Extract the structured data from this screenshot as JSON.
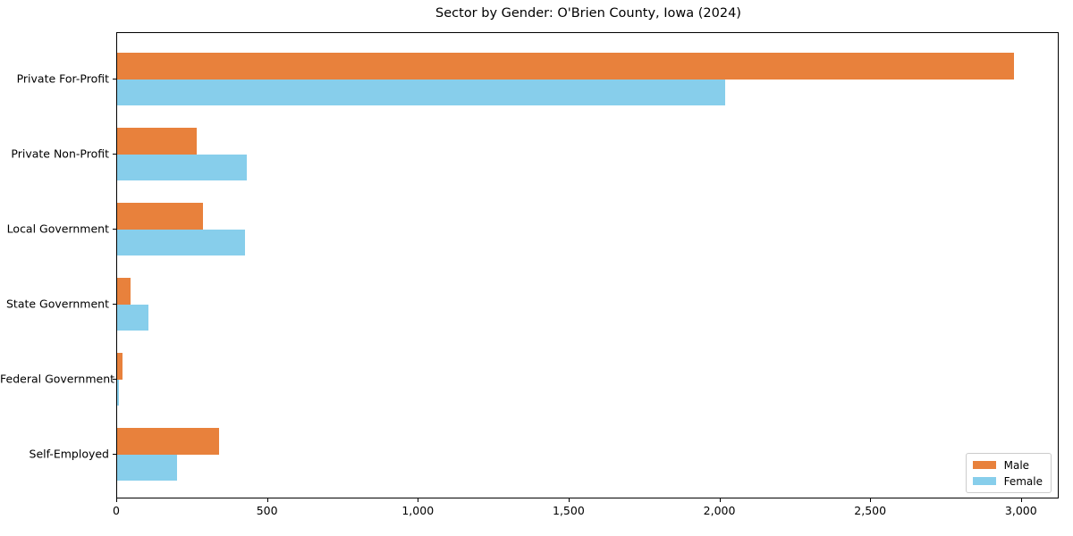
{
  "chart_data": {
    "type": "bar",
    "orientation": "horizontal",
    "title": "Sector by Gender: O'Brien County, Iowa (2024)",
    "categories": [
      "Private For-Profit",
      "Private Non-Profit",
      "Local Government",
      "State Government",
      "Federal Government",
      "Self-Employed"
    ],
    "series": [
      {
        "name": "Male",
        "color": "#e8813c",
        "values": [
          2980,
          265,
          285,
          45,
          18,
          340
        ]
      },
      {
        "name": "Female",
        "color": "#87ceeb",
        "values": [
          2020,
          430,
          425,
          105,
          6,
          200
        ]
      }
    ],
    "xlabel": "",
    "ylabel": "",
    "xlim": [
      0,
      3125
    ],
    "xticks": [
      0,
      500,
      1000,
      1500,
      2000,
      2500,
      3000
    ],
    "xtick_labels": [
      "0",
      "500",
      "1,000",
      "1,500",
      "2,000",
      "2,500",
      "3,000"
    ],
    "grid": false,
    "legend_position": "lower-right"
  }
}
